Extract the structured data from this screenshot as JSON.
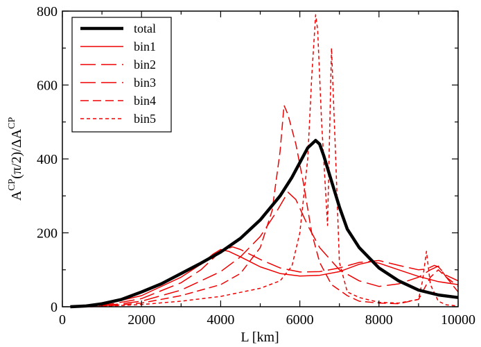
{
  "chart_data": {
    "type": "line",
    "xlabel": "L [km]",
    "ylabel_main": "A",
    "ylabel_sup1": "CP",
    "ylabel_mid": "(π/2)/ΔA",
    "ylabel_sup2": "CP",
    "xlim": [
      0,
      10000
    ],
    "ylim": [
      0,
      800
    ],
    "xticks": [
      0,
      2000,
      4000,
      6000,
      8000,
      10000
    ],
    "yticks": [
      0,
      200,
      400,
      600,
      800
    ],
    "xtick_labels": [
      "0",
      "2000",
      "4000",
      "6000",
      "8000",
      "10000"
    ],
    "ytick_labels": [
      "0",
      "200",
      "400",
      "600",
      "800"
    ],
    "grid": false,
    "legend_position": "top-left",
    "series": [
      {
        "name": "total",
        "color": "#000000",
        "style": "solid-thick",
        "points": [
          [
            200,
            0
          ],
          [
            600,
            2
          ],
          [
            1000,
            8
          ],
          [
            1500,
            20
          ],
          [
            2000,
            40
          ],
          [
            2500,
            62
          ],
          [
            3000,
            90
          ],
          [
            3500,
            118
          ],
          [
            4000,
            148
          ],
          [
            4500,
            185
          ],
          [
            5000,
            235
          ],
          [
            5500,
            300
          ],
          [
            5800,
            350
          ],
          [
            6000,
            390
          ],
          [
            6200,
            430
          ],
          [
            6400,
            450
          ],
          [
            6500,
            440
          ],
          [
            6600,
            410
          ],
          [
            6800,
            340
          ],
          [
            7000,
            270
          ],
          [
            7200,
            210
          ],
          [
            7500,
            160
          ],
          [
            8000,
            105
          ],
          [
            8500,
            70
          ],
          [
            9000,
            45
          ],
          [
            9500,
            32
          ],
          [
            10000,
            25
          ]
        ]
      },
      {
        "name": "bin1",
        "color": "#ee0000",
        "style": "solid",
        "points": [
          [
            300,
            0
          ],
          [
            1000,
            5
          ],
          [
            2000,
            30
          ],
          [
            3000,
            80
          ],
          [
            3500,
            115
          ],
          [
            3800,
            142
          ],
          [
            4000,
            155
          ],
          [
            4200,
            150
          ],
          [
            4500,
            135
          ],
          [
            5000,
            108
          ],
          [
            5500,
            90
          ],
          [
            6000,
            83
          ],
          [
            6500,
            85
          ],
          [
            7000,
            95
          ],
          [
            7500,
            115
          ],
          [
            7800,
            122
          ],
          [
            8000,
            118
          ],
          [
            8500,
            100
          ],
          [
            9000,
            82
          ],
          [
            9500,
            68
          ],
          [
            10000,
            60
          ]
        ]
      },
      {
        "name": "bin2",
        "color": "#ee0000",
        "style": "dash-long",
        "points": [
          [
            400,
            0
          ],
          [
            1000,
            3
          ],
          [
            2000,
            22
          ],
          [
            3000,
            65
          ],
          [
            3500,
            100
          ],
          [
            4000,
            150
          ],
          [
            4300,
            162
          ],
          [
            4500,
            155
          ],
          [
            5000,
            128
          ],
          [
            5500,
            105
          ],
          [
            6000,
            94
          ],
          [
            6500,
            95
          ],
          [
            7000,
            105
          ],
          [
            7500,
            120
          ],
          [
            8000,
            125
          ],
          [
            8500,
            112
          ],
          [
            9000,
            100
          ],
          [
            9200,
            102
          ],
          [
            9400,
            112
          ],
          [
            9500,
            108
          ],
          [
            9700,
            85
          ],
          [
            10000,
            70
          ]
        ]
      },
      {
        "name": "bin3",
        "color": "#ee0000",
        "style": "dash-long",
        "points": [
          [
            500,
            0
          ],
          [
            1000,
            2
          ],
          [
            2000,
            15
          ],
          [
            3000,
            45
          ],
          [
            4000,
            95
          ],
          [
            4500,
            135
          ],
          [
            5000,
            190
          ],
          [
            5400,
            255
          ],
          [
            5700,
            310
          ],
          [
            5900,
            290
          ],
          [
            6200,
            220
          ],
          [
            6500,
            160
          ],
          [
            7000,
            100
          ],
          [
            7500,
            70
          ],
          [
            8000,
            55
          ],
          [
            8500,
            62
          ],
          [
            9000,
            80
          ],
          [
            9300,
            100
          ],
          [
            9500,
            110
          ],
          [
            9700,
            80
          ],
          [
            10000,
            55
          ]
        ]
      },
      {
        "name": "bin4",
        "color": "#ee0000",
        "style": "dash-medium",
        "points": [
          [
            600,
            0
          ],
          [
            1000,
            1
          ],
          [
            2000,
            10
          ],
          [
            3000,
            30
          ],
          [
            4000,
            60
          ],
          [
            4500,
            90
          ],
          [
            5000,
            160
          ],
          [
            5300,
            260
          ],
          [
            5500,
            420
          ],
          [
            5600,
            545
          ],
          [
            5700,
            520
          ],
          [
            5900,
            440
          ],
          [
            6100,
            330
          ],
          [
            6300,
            200
          ],
          [
            6500,
            120
          ],
          [
            6800,
            60
          ],
          [
            7200,
            30
          ],
          [
            7500,
            15
          ],
          [
            8000,
            10
          ],
          [
            8500,
            8
          ],
          [
            9000,
            20
          ],
          [
            9300,
            80
          ],
          [
            9500,
            100
          ],
          [
            9700,
            80
          ],
          [
            10000,
            40
          ]
        ]
      },
      {
        "name": "bin5",
        "color": "#ee0000",
        "style": "dash-short",
        "points": [
          [
            700,
            0
          ],
          [
            1000,
            1
          ],
          [
            2000,
            6
          ],
          [
            3000,
            15
          ],
          [
            4000,
            28
          ],
          [
            5000,
            50
          ],
          [
            5500,
            70
          ],
          [
            5800,
            110
          ],
          [
            6000,
            200
          ],
          [
            6200,
            400
          ],
          [
            6300,
            620
          ],
          [
            6400,
            790
          ],
          [
            6450,
            750
          ],
          [
            6550,
            500
          ],
          [
            6700,
            220
          ],
          [
            6800,
            700
          ],
          [
            6900,
            420
          ],
          [
            7000,
            120
          ],
          [
            7200,
            40
          ],
          [
            7500,
            25
          ],
          [
            8000,
            12
          ],
          [
            8500,
            10
          ],
          [
            9000,
            20
          ],
          [
            9100,
            70
          ],
          [
            9200,
            150
          ],
          [
            9300,
            60
          ],
          [
            9500,
            15
          ],
          [
            9700,
            5
          ],
          [
            10000,
            2
          ]
        ]
      }
    ],
    "legend": [
      "total",
      "bin1",
      "bin2",
      "bin3",
      "bin4",
      "bin5"
    ]
  }
}
